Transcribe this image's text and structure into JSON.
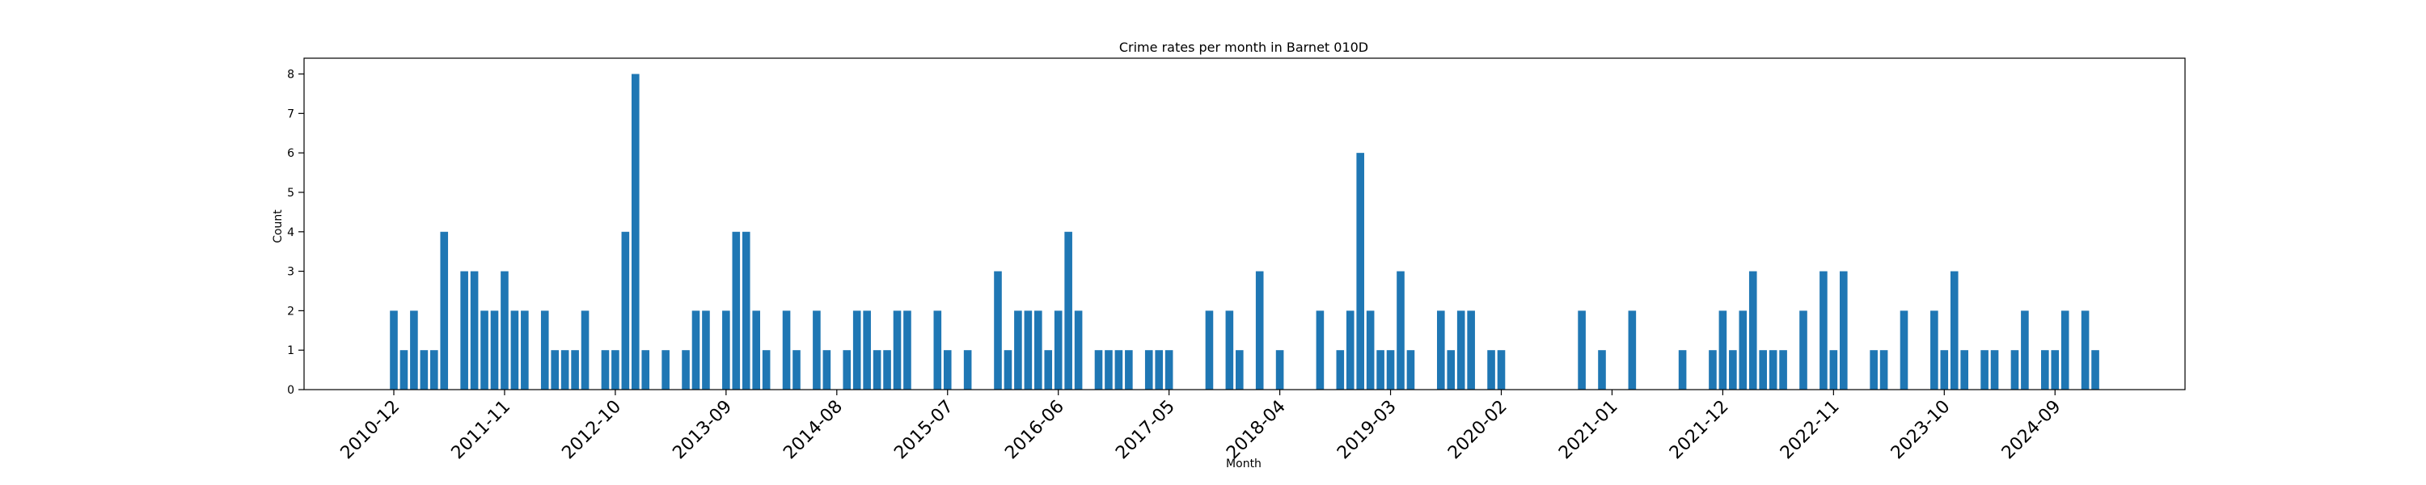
{
  "chart_data": {
    "type": "bar",
    "title": "Crime rates per month in Barnet 010D",
    "xlabel": "Month",
    "ylabel": "Count",
    "ylim": [
      0,
      8.4
    ],
    "yticks": [
      0,
      1,
      2,
      3,
      4,
      5,
      6,
      7,
      8
    ],
    "xtick_labels": [
      "2010-12",
      "2011-11",
      "2012-10",
      "2013-09",
      "2014-08",
      "2015-07",
      "2016-06",
      "2017-05",
      "2018-04",
      "2019-03",
      "2020-02",
      "2021-01",
      "2021-12",
      "2022-11",
      "2023-10",
      "2024-09"
    ],
    "start_month": "2010-12",
    "months": 176,
    "grid": false,
    "color": "#1f77b4",
    "bars": [
      [
        "2010-12",
        2
      ],
      [
        "2011-01",
        1
      ],
      [
        "2011-02",
        2
      ],
      [
        "2011-03",
        1
      ],
      [
        "2011-04",
        1
      ],
      [
        "2011-05",
        4
      ],
      [
        "2011-07",
        3
      ],
      [
        "2011-08",
        3
      ],
      [
        "2011-09",
        2
      ],
      [
        "2011-10",
        2
      ],
      [
        "2011-11",
        3
      ],
      [
        "2011-12",
        2
      ],
      [
        "2012-01",
        2
      ],
      [
        "2012-03",
        2
      ],
      [
        "2012-04",
        1
      ],
      [
        "2012-05",
        1
      ],
      [
        "2012-06",
        1
      ],
      [
        "2012-07",
        2
      ],
      [
        "2012-09",
        1
      ],
      [
        "2012-10",
        1
      ],
      [
        "2012-11",
        4
      ],
      [
        "2012-12",
        8
      ],
      [
        "2013-01",
        1
      ],
      [
        "2013-03",
        1
      ],
      [
        "2013-05",
        1
      ],
      [
        "2013-06",
        2
      ],
      [
        "2013-07",
        2
      ],
      [
        "2013-09",
        2
      ],
      [
        "2013-10",
        4
      ],
      [
        "2013-11",
        4
      ],
      [
        "2013-12",
        2
      ],
      [
        "2014-01",
        1
      ],
      [
        "2014-03",
        2
      ],
      [
        "2014-04",
        1
      ],
      [
        "2014-06",
        2
      ],
      [
        "2014-07",
        1
      ],
      [
        "2014-09",
        1
      ],
      [
        "2014-10",
        2
      ],
      [
        "2014-11",
        2
      ],
      [
        "2014-12",
        1
      ],
      [
        "2015-01",
        1
      ],
      [
        "2015-02",
        2
      ],
      [
        "2015-03",
        2
      ],
      [
        "2015-06",
        2
      ],
      [
        "2015-07",
        1
      ],
      [
        "2015-09",
        1
      ],
      [
        "2015-12",
        3
      ],
      [
        "2016-01",
        1
      ],
      [
        "2016-02",
        2
      ],
      [
        "2016-03",
        2
      ],
      [
        "2016-04",
        2
      ],
      [
        "2016-05",
        1
      ],
      [
        "2016-06",
        2
      ],
      [
        "2016-07",
        4
      ],
      [
        "2016-08",
        2
      ],
      [
        "2016-10",
        1
      ],
      [
        "2016-11",
        1
      ],
      [
        "2016-12",
        1
      ],
      [
        "2017-01",
        1
      ],
      [
        "2017-03",
        1
      ],
      [
        "2017-04",
        1
      ],
      [
        "2017-05",
        1
      ],
      [
        "2017-09",
        2
      ],
      [
        "2017-11",
        2
      ],
      [
        "2017-12",
        1
      ],
      [
        "2018-02",
        3
      ],
      [
        "2018-04",
        1
      ],
      [
        "2018-08",
        2
      ],
      [
        "2018-10",
        1
      ],
      [
        "2018-11",
        2
      ],
      [
        "2018-12",
        6
      ],
      [
        "2019-01",
        2
      ],
      [
        "2019-02",
        1
      ],
      [
        "2019-03",
        1
      ],
      [
        "2019-04",
        3
      ],
      [
        "2019-05",
        1
      ],
      [
        "2019-08",
        2
      ],
      [
        "2019-09",
        1
      ],
      [
        "2019-10",
        2
      ],
      [
        "2019-11",
        2
      ],
      [
        "2020-01",
        1
      ],
      [
        "2020-02",
        1
      ],
      [
        "2020-10",
        2
      ],
      [
        "2020-12",
        1
      ],
      [
        "2021-03",
        2
      ],
      [
        "2021-08",
        1
      ],
      [
        "2021-11",
        1
      ],
      [
        "2021-12",
        2
      ],
      [
        "2022-01",
        1
      ],
      [
        "2022-02",
        2
      ],
      [
        "2022-03",
        3
      ],
      [
        "2022-04",
        1
      ],
      [
        "2022-05",
        1
      ],
      [
        "2022-06",
        1
      ],
      [
        "2022-08",
        2
      ],
      [
        "2022-10",
        3
      ],
      [
        "2022-11",
        1
      ],
      [
        "2022-12",
        3
      ],
      [
        "2023-03",
        1
      ],
      [
        "2023-04",
        1
      ],
      [
        "2023-06",
        2
      ],
      [
        "2023-09",
        2
      ],
      [
        "2023-10",
        1
      ],
      [
        "2023-11",
        3
      ],
      [
        "2023-12",
        1
      ],
      [
        "2024-02",
        1
      ],
      [
        "2024-03",
        1
      ],
      [
        "2024-05",
        1
      ],
      [
        "2024-06",
        2
      ],
      [
        "2024-08",
        1
      ],
      [
        "2024-09",
        1
      ],
      [
        "2024-10",
        2
      ],
      [
        "2024-12",
        2
      ],
      [
        "2025-01",
        1
      ]
    ]
  }
}
